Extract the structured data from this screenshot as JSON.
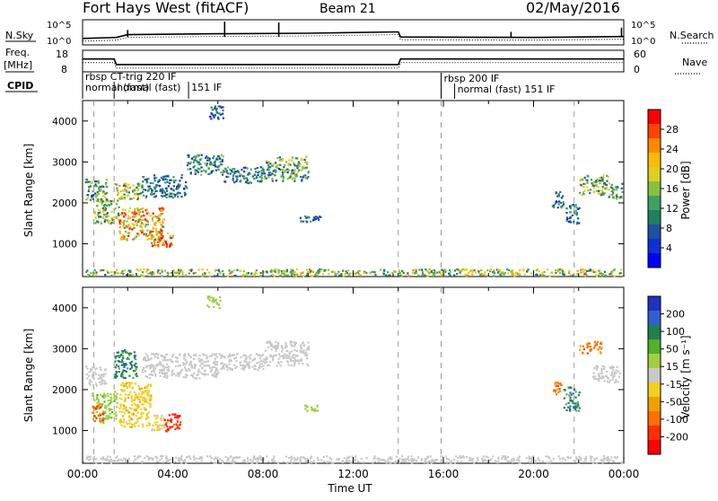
{
  "header": {
    "station": "Fort Hays West (fitACF)",
    "beam": "Beam 21",
    "date": "02/May/2016"
  },
  "noise_panel": {
    "left_label": "N.Sky",
    "right_label": "N.Search",
    "right_style": "dotted",
    "ticks": [
      "10^5",
      "10^0"
    ],
    "right_ticks": [
      "10^5",
      "10^0"
    ]
  },
  "freq_panel": {
    "left_label_1": "Freq.",
    "left_label_2": "[MHz]",
    "left_ticks": [
      "18",
      "8"
    ],
    "right_label": "Nave",
    "right_style": "dotted",
    "right_ticks": [
      "60",
      "0"
    ]
  },
  "cpid_panel": {
    "label": "CPID",
    "segments": [
      {
        "start_h": 0.0,
        "end_h": 14.0,
        "text": "rbsp CT-trig 220 IF"
      },
      {
        "start_h": 0.0,
        "end_h": 1.4,
        "text": "normal (fast)"
      },
      {
        "start_h": 1.4,
        "end_h": 4.7,
        "text": "normal (fast)"
      },
      {
        "start_h": 4.7,
        "end_h": 5.8,
        "text": "151 IF"
      },
      {
        "start_h": 15.9,
        "end_h": 23.9,
        "text": "rbsp 200 IF"
      },
      {
        "start_h": 16.5,
        "end_h": 23.9,
        "text": "normal (fast)  151 IF"
      }
    ]
  },
  "power_panel": {
    "ylabel": "Slant Range [km]",
    "yticks": [
      "4000",
      "3000",
      "2000",
      "1000"
    ],
    "colorbar": {
      "label": "Power [dB]",
      "ticks": [
        "28",
        "24",
        "20",
        "16",
        "12",
        "8",
        "4"
      ],
      "colors": [
        "#ff0000",
        "#ff4400",
        "#ff8800",
        "#ffbb00",
        "#ddd020",
        "#88c040",
        "#40a060",
        "#208060",
        "#2050a0",
        "#1030d0",
        "#0000ff"
      ]
    }
  },
  "velocity_panel": {
    "ylabel": "Slant Range [km]",
    "yticks": [
      "4000",
      "3000",
      "2000",
      "1000"
    ],
    "colorbar": {
      "label": "Velocity [m s⁻¹]",
      "ticks": [
        "200",
        "100",
        "50",
        "15",
        "-15",
        "-50",
        "-100",
        "-200"
      ],
      "colors": [
        "#2030c0",
        "#3060d0",
        "#208050",
        "#50b030",
        "#a0d040",
        "#c8c8c8",
        "#f0d020",
        "#f0a000",
        "#ff7000",
        "#ff3000",
        "#ff0000"
      ]
    }
  },
  "x_axis": {
    "label": "Time UT",
    "ticks": [
      "00:00",
      "04:00",
      "08:00",
      "12:00",
      "16:00",
      "20:00",
      "00:00"
    ]
  },
  "chart_data": {
    "type": "heatmap",
    "title": "Fort Hays West (fitACF)",
    "subtitle": "Beam 21",
    "date": "02/May/2016",
    "xlabel": "Time UT",
    "ylabel": "Slant Range [km]",
    "x_range_hours": [
      0,
      24
    ],
    "y_range_km": [
      200,
      4500
    ],
    "power_range_db": [
      0,
      32
    ],
    "velocity_range": [
      -250,
      250
    ],
    "vertical_dashed_lines_h": [
      0.5,
      1.4,
      14.0,
      15.9,
      21.8
    ],
    "noise_sky": [
      {
        "t": 0.0,
        "v": 1.2
      },
      {
        "t": 1.5,
        "v": 1.4
      },
      {
        "t": 2.0,
        "v": 2.0
      },
      {
        "t": 6.0,
        "v": 2.2
      },
      {
        "t": 10.0,
        "v": 2.3
      },
      {
        "t": 14.0,
        "v": 2.6
      },
      {
        "t": 14.1,
        "v": 1.5
      },
      {
        "t": 20.0,
        "v": 1.4
      },
      {
        "t": 24.0,
        "v": 1.6
      }
    ],
    "noise_spikes": [
      {
        "t": 2.0,
        "v": 3.0
      },
      {
        "t": 6.3,
        "v": 4.8
      },
      {
        "t": 8.7,
        "v": 4.6
      },
      {
        "t": 19.0,
        "v": 2.6
      },
      {
        "t": 23.9,
        "v": 3.5
      }
    ],
    "freq": [
      {
        "t": 0.0,
        "v": 14.5
      },
      {
        "t": 1.4,
        "v": 14.5
      },
      {
        "t": 1.5,
        "v": 11.7
      },
      {
        "t": 14.0,
        "v": 11.7
      },
      {
        "t": 14.1,
        "v": 14.5
      },
      {
        "t": 24.0,
        "v": 14.5
      }
    ],
    "power_clusters": [
      {
        "t0": 0.1,
        "t1": 1.1,
        "r0": 2050,
        "r1": 2600,
        "v": 12
      },
      {
        "t0": 0.5,
        "t1": 1.6,
        "r0": 1500,
        "r1": 2100,
        "v": 16
      },
      {
        "t0": 1.6,
        "t1": 3.6,
        "r0": 1100,
        "r1": 1900,
        "v": 22
      },
      {
        "t0": 3.0,
        "t1": 4.0,
        "r0": 950,
        "r1": 1300,
        "v": 26
      },
      {
        "t0": 1.4,
        "t1": 2.6,
        "r0": 2100,
        "r1": 2500,
        "v": 18
      },
      {
        "t0": 2.6,
        "t1": 4.6,
        "r0": 2150,
        "r1": 2700,
        "v": 8
      },
      {
        "t0": 4.6,
        "t1": 6.2,
        "r0": 2700,
        "r1": 3200,
        "v": 10
      },
      {
        "t0": 6.2,
        "t1": 8.0,
        "r0": 2500,
        "r1": 2900,
        "v": 9
      },
      {
        "t0": 8.0,
        "t1": 10.0,
        "r0": 2550,
        "r1": 3150,
        "v": 12
      },
      {
        "t0": 9.6,
        "t1": 10.6,
        "r0": 1550,
        "r1": 1700,
        "v": 8
      },
      {
        "t0": 5.6,
        "t1": 6.2,
        "r0": 4050,
        "r1": 4400,
        "v": 6
      },
      {
        "t0": 20.8,
        "t1": 21.3,
        "r0": 1900,
        "r1": 2300,
        "v": 8
      },
      {
        "t0": 21.4,
        "t1": 22.0,
        "r0": 1500,
        "r1": 2000,
        "v": 7
      },
      {
        "t0": 22.0,
        "t1": 23.3,
        "r0": 2200,
        "r1": 2700,
        "v": 14
      },
      {
        "t0": 23.3,
        "t1": 23.9,
        "r0": 2100,
        "r1": 2500,
        "v": 12
      },
      {
        "t0": 0.0,
        "t1": 24.0,
        "r0": 230,
        "r1": 400,
        "v": 16
      }
    ],
    "velocity_clusters": [
      {
        "t0": 0.1,
        "t1": 1.0,
        "r0": 2100,
        "r1": 2600,
        "v": 0
      },
      {
        "t0": 0.4,
        "t1": 1.5,
        "r0": 1300,
        "r1": 2000,
        "v": 60
      },
      {
        "t0": 0.4,
        "t1": 0.9,
        "r0": 1200,
        "r1": 1700,
        "v": -150
      },
      {
        "t0": 1.4,
        "t1": 2.4,
        "r0": 2300,
        "r1": 3000,
        "v": 150
      },
      {
        "t0": 1.6,
        "t1": 3.0,
        "r0": 1100,
        "r1": 2200,
        "v": -60
      },
      {
        "t0": 3.0,
        "t1": 3.6,
        "r0": 1000,
        "r1": 1400,
        "v": -30
      },
      {
        "t0": 3.6,
        "t1": 4.3,
        "r0": 1000,
        "r1": 1450,
        "v": -220
      },
      {
        "t0": 2.6,
        "t1": 6.0,
        "r0": 2300,
        "r1": 2900,
        "v": 0
      },
      {
        "t0": 6.0,
        "t1": 8.0,
        "r0": 2500,
        "r1": 2900,
        "v": 5
      },
      {
        "t0": 8.0,
        "t1": 10.0,
        "r0": 2600,
        "r1": 3200,
        "v": 0
      },
      {
        "t0": 9.8,
        "t1": 10.4,
        "r0": 1500,
        "r1": 1650,
        "v": 40
      },
      {
        "t0": 5.5,
        "t1": 6.2,
        "r0": 4000,
        "r1": 4300,
        "v": 40
      },
      {
        "t0": 20.8,
        "t1": 21.3,
        "r0": 1900,
        "r1": 2200,
        "v": -150
      },
      {
        "t0": 21.3,
        "t1": 22.0,
        "r0": 1500,
        "r1": 2100,
        "v": 160
      },
      {
        "t0": 22.0,
        "t1": 23.0,
        "r0": 2900,
        "r1": 3200,
        "v": -150
      },
      {
        "t0": 22.6,
        "t1": 23.8,
        "r0": 2200,
        "r1": 2600,
        "v": 0
      },
      {
        "t0": 0.0,
        "t1": 24.0,
        "r0": 230,
        "r1": 400,
        "v": -10
      }
    ]
  }
}
